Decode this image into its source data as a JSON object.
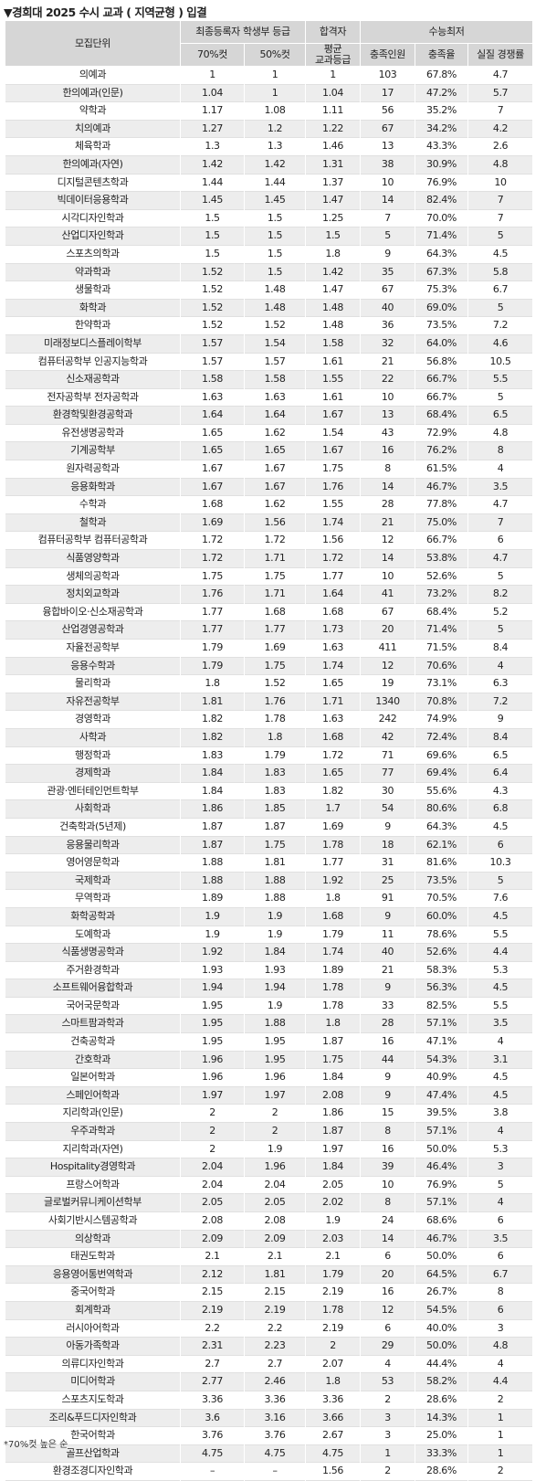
{
  "header": {
    "title": "▼경희대 2025 수시 교과 ( 지역균형 ) 입결"
  },
  "table": {
    "group_headers": {
      "unit": "모집단위",
      "grade": "최종등록자 학생부 등급",
      "pass": "합격자",
      "csat": "수능최저"
    },
    "columns": [
      "70%컷",
      "50%컷",
      "평균\n교과등급",
      "충족인원",
      "충족율",
      "실질 경쟁률"
    ],
    "rows": [
      [
        "의예과",
        "1",
        "1",
        "1",
        "103",
        "67.8%",
        "4.7"
      ],
      [
        "한의예과(인문)",
        "1.04",
        "1",
        "1.04",
        "17",
        "47.2%",
        "5.7"
      ],
      [
        "약학과",
        "1.17",
        "1.08",
        "1.11",
        "56",
        "35.2%",
        "7"
      ],
      [
        "치의예과",
        "1.27",
        "1.2",
        "1.22",
        "67",
        "34.2%",
        "4.2"
      ],
      [
        "체육학과",
        "1.3",
        "1.3",
        "1.46",
        "13",
        "43.3%",
        "2.6"
      ],
      [
        "한의예과(자연)",
        "1.42",
        "1.42",
        "1.31",
        "38",
        "30.9%",
        "4.8"
      ],
      [
        "디지털콘텐츠학과",
        "1.44",
        "1.44",
        "1.37",
        "10",
        "76.9%",
        "10"
      ],
      [
        "빅데이터응용학과",
        "1.45",
        "1.45",
        "1.47",
        "14",
        "82.4%",
        "7"
      ],
      [
        "시각디자인학과",
        "1.5",
        "1.5",
        "1.25",
        "7",
        "70.0%",
        "7"
      ],
      [
        "산업디자인학과",
        "1.5",
        "1.5",
        "1.5",
        "5",
        "71.4%",
        "5"
      ],
      [
        "스포츠의학과",
        "1.5",
        "1.5",
        "1.8",
        "9",
        "64.3%",
        "4.5"
      ],
      [
        "약과학과",
        "1.52",
        "1.5",
        "1.42",
        "35",
        "67.3%",
        "5.8"
      ],
      [
        "생물학과",
        "1.52",
        "1.48",
        "1.47",
        "67",
        "75.3%",
        "6.7"
      ],
      [
        "화학과",
        "1.52",
        "1.48",
        "1.48",
        "40",
        "69.0%",
        "5"
      ],
      [
        "한약학과",
        "1.52",
        "1.52",
        "1.48",
        "36",
        "73.5%",
        "7.2"
      ],
      [
        "미래정보디스플레이학부",
        "1.57",
        "1.54",
        "1.58",
        "32",
        "64.0%",
        "4.6"
      ],
      [
        "컴퓨터공학부 인공지능학과",
        "1.57",
        "1.57",
        "1.61",
        "21",
        "56.8%",
        "10.5"
      ],
      [
        "신소재공학과",
        "1.58",
        "1.58",
        "1.55",
        "22",
        "66.7%",
        "5.5"
      ],
      [
        "전자공학부 전자공학과",
        "1.63",
        "1.63",
        "1.61",
        "10",
        "66.7%",
        "5"
      ],
      [
        "환경학및환경공학과",
        "1.64",
        "1.64",
        "1.67",
        "13",
        "68.4%",
        "6.5"
      ],
      [
        "유전생명공학과",
        "1.65",
        "1.62",
        "1.54",
        "43",
        "72.9%",
        "4.8"
      ],
      [
        "기계공학부",
        "1.65",
        "1.65",
        "1.67",
        "16",
        "76.2%",
        "8"
      ],
      [
        "원자력공학과",
        "1.67",
        "1.67",
        "1.75",
        "8",
        "61.5%",
        "4"
      ],
      [
        "응용화학과",
        "1.67",
        "1.67",
        "1.76",
        "14",
        "46.7%",
        "3.5"
      ],
      [
        "수학과",
        "1.68",
        "1.62",
        "1.55",
        "28",
        "77.8%",
        "4.7"
      ],
      [
        "철학과",
        "1.69",
        "1.56",
        "1.74",
        "21",
        "75.0%",
        "7"
      ],
      [
        "컴퓨터공학부 컴퓨터공학과",
        "1.72",
        "1.72",
        "1.56",
        "12",
        "66.7%",
        "6"
      ],
      [
        "식품영양학과",
        "1.72",
        "1.71",
        "1.72",
        "14",
        "53.8%",
        "4.7"
      ],
      [
        "생체의공학과",
        "1.75",
        "1.75",
        "1.77",
        "10",
        "52.6%",
        "5"
      ],
      [
        "정치외교학과",
        "1.76",
        "1.71",
        "1.64",
        "41",
        "73.2%",
        "8.2"
      ],
      [
        "융합바이오·신소재공학과",
        "1.77",
        "1.68",
        "1.68",
        "67",
        "68.4%",
        "5.2"
      ],
      [
        "산업경영공학과",
        "1.77",
        "1.77",
        "1.73",
        "20",
        "71.4%",
        "5"
      ],
      [
        "자율전공학부",
        "1.79",
        "1.69",
        "1.63",
        "411",
        "71.5%",
        "8.4"
      ],
      [
        "응용수학과",
        "1.79",
        "1.75",
        "1.74",
        "12",
        "70.6%",
        "4"
      ],
      [
        "물리학과",
        "1.8",
        "1.52",
        "1.65",
        "19",
        "73.1%",
        "6.3"
      ],
      [
        "자유전공학부",
        "1.81",
        "1.76",
        "1.71",
        "1340",
        "70.8%",
        "7.2"
      ],
      [
        "경영학과",
        "1.82",
        "1.78",
        "1.63",
        "242",
        "74.9%",
        "9"
      ],
      [
        "사학과",
        "1.82",
        "1.8",
        "1.68",
        "42",
        "72.4%",
        "8.4"
      ],
      [
        "행정학과",
        "1.83",
        "1.79",
        "1.72",
        "71",
        "69.6%",
        "6.5"
      ],
      [
        "경제학과",
        "1.84",
        "1.83",
        "1.65",
        "77",
        "69.4%",
        "6.4"
      ],
      [
        "관광·엔터테인먼트학부",
        "1.84",
        "1.83",
        "1.82",
        "30",
        "55.6%",
        "4.3"
      ],
      [
        "사회학과",
        "1.86",
        "1.85",
        "1.7",
        "54",
        "80.6%",
        "6.8"
      ],
      [
        "건축학과(5년제)",
        "1.87",
        "1.87",
        "1.69",
        "9",
        "64.3%",
        "4.5"
      ],
      [
        "응용물리학과",
        "1.87",
        "1.75",
        "1.78",
        "18",
        "62.1%",
        "6"
      ],
      [
        "영어영문학과",
        "1.88",
        "1.81",
        "1.77",
        "31",
        "81.6%",
        "10.3"
      ],
      [
        "국제학과",
        "1.88",
        "1.88",
        "1.92",
        "25",
        "73.5%",
        "5"
      ],
      [
        "무역학과",
        "1.89",
        "1.88",
        "1.8",
        "91",
        "70.5%",
        "7.6"
      ],
      [
        "화학공학과",
        "1.9",
        "1.9",
        "1.68",
        "9",
        "60.0%",
        "4.5"
      ],
      [
        "도예학과",
        "1.9",
        "1.9",
        "1.79",
        "11",
        "78.6%",
        "5.5"
      ],
      [
        "식품생명공학과",
        "1.92",
        "1.84",
        "1.74",
        "40",
        "52.6%",
        "4.4"
      ],
      [
        "주거환경학과",
        "1.93",
        "1.93",
        "1.89",
        "21",
        "58.3%",
        "5.3"
      ],
      [
        "소프트웨어융합학과",
        "1.94",
        "1.94",
        "1.78",
        "9",
        "56.3%",
        "4.5"
      ],
      [
        "국어국문학과",
        "1.95",
        "1.9",
        "1.78",
        "33",
        "82.5%",
        "5.5"
      ],
      [
        "스마트팜과학과",
        "1.95",
        "1.88",
        "1.8",
        "28",
        "57.1%",
        "3.5"
      ],
      [
        "건축공학과",
        "1.95",
        "1.95",
        "1.87",
        "16",
        "47.1%",
        "4"
      ],
      [
        "간호학과",
        "1.96",
        "1.95",
        "1.75",
        "44",
        "54.3%",
        "3.1"
      ],
      [
        "일본어학과",
        "1.96",
        "1.96",
        "1.84",
        "9",
        "40.9%",
        "4.5"
      ],
      [
        "스페인어학과",
        "1.97",
        "1.97",
        "2.08",
        "9",
        "47.4%",
        "4.5"
      ],
      [
        "지리학과(인문)",
        "2",
        "2",
        "1.86",
        "15",
        "39.5%",
        "3.8"
      ],
      [
        "우주과학과",
        "2",
        "2",
        "1.87",
        "8",
        "57.1%",
        "4"
      ],
      [
        "지리학과(자연)",
        "2",
        "1.9",
        "1.97",
        "16",
        "50.0%",
        "5.3"
      ],
      [
        "Hospitality경영학과",
        "2.04",
        "1.96",
        "1.84",
        "39",
        "46.4%",
        "3"
      ],
      [
        "프랑스어학과",
        "2.04",
        "2.04",
        "2.05",
        "10",
        "76.9%",
        "5"
      ],
      [
        "글로벌커뮤니케이션학부",
        "2.05",
        "2.05",
        "2.02",
        "8",
        "57.1%",
        "4"
      ],
      [
        "사회기반시스템공학과",
        "2.08",
        "2.08",
        "1.9",
        "24",
        "68.6%",
        "6"
      ],
      [
        "의상학과",
        "2.09",
        "2.09",
        "2.03",
        "14",
        "46.7%",
        "3.5"
      ],
      [
        "태권도학과",
        "2.1",
        "2.1",
        "2.1",
        "6",
        "50.0%",
        "6"
      ],
      [
        "응용영어통번역학과",
        "2.12",
        "1.81",
        "1.79",
        "20",
        "64.5%",
        "6.7"
      ],
      [
        "중국어학과",
        "2.15",
        "2.15",
        "2.19",
        "16",
        "26.7%",
        "8"
      ],
      [
        "회계학과",
        "2.19",
        "2.19",
        "1.78",
        "12",
        "54.5%",
        "6"
      ],
      [
        "러시아어학과",
        "2.2",
        "2.2",
        "2.19",
        "6",
        "40.0%",
        "3"
      ],
      [
        "아동가족학과",
        "2.31",
        "2.23",
        "2",
        "29",
        "50.0%",
        "4.8"
      ],
      [
        "의류디자인학과",
        "2.7",
        "2.7",
        "2.07",
        "4",
        "44.4%",
        "4"
      ],
      [
        "미디어학과",
        "2.77",
        "2.46",
        "1.8",
        "53",
        "58.2%",
        "4.4"
      ],
      [
        "스포츠지도학과",
        "3.36",
        "3.36",
        "3.36",
        "2",
        "28.6%",
        "2"
      ],
      [
        "조리&푸드디자인학과",
        "3.6",
        "3.16",
        "3.66",
        "3",
        "14.3%",
        "1"
      ],
      [
        "한국어학과",
        "3.76",
        "3.76",
        "2.67",
        "3",
        "25.0%",
        "1"
      ],
      [
        "골프산업학과",
        "4.75",
        "4.75",
        "4.75",
        "1",
        "33.3%",
        "1"
      ],
      [
        "환경조경디자인학과",
        "–",
        "–",
        "1.56",
        "2",
        "28.6%",
        "2"
      ]
    ]
  },
  "footer": {
    "note": "*70%컷 높은 순"
  }
}
